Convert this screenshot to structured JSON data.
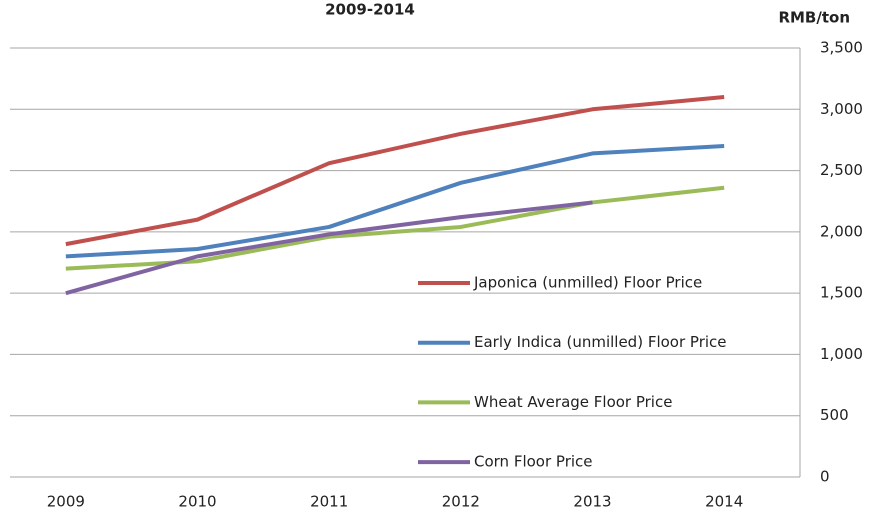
{
  "chart_data": {
    "type": "line",
    "title": "2009-2014",
    "y_axis_label": "RMB/ton",
    "categories": [
      "2009",
      "2010",
      "2011",
      "2012",
      "2013",
      "2014"
    ],
    "series": [
      {
        "name": "Japonica (unmilled) Floor Price",
        "color": "#c0504d",
        "values": [
          1900,
          2100,
          2560,
          2800,
          3000,
          3100
        ]
      },
      {
        "name": "Early Indica (unmilled) Floor Price",
        "color": "#4f81bd",
        "values": [
          1800,
          1860,
          2040,
          2400,
          2640,
          2700
        ]
      },
      {
        "name": "Wheat Average Floor Price",
        "color": "#9bbb59",
        "values": [
          1700,
          1760,
          1960,
          2040,
          2240,
          2360
        ]
      },
      {
        "name": "Corn Floor Price",
        "color": "#8064a2",
        "values": [
          1500,
          1800,
          1980,
          2120,
          2240,
          null
        ]
      }
    ],
    "ylim": [
      0,
      3500
    ],
    "yticks": [
      0,
      500,
      {
        "value": 1000,
        "label": "1,000"
      },
      {
        "value": 1500,
        "label": "1,500"
      },
      {
        "value": 2000,
        "label": "2,000"
      },
      {
        "value": 2500,
        "label": "2,500"
      },
      {
        "value": 3000,
        "label": "3,000"
      },
      {
        "value": 3500,
        "label": "3,500"
      }
    ],
    "y_axis_side": "right",
    "grid": true,
    "legend": "right"
  }
}
